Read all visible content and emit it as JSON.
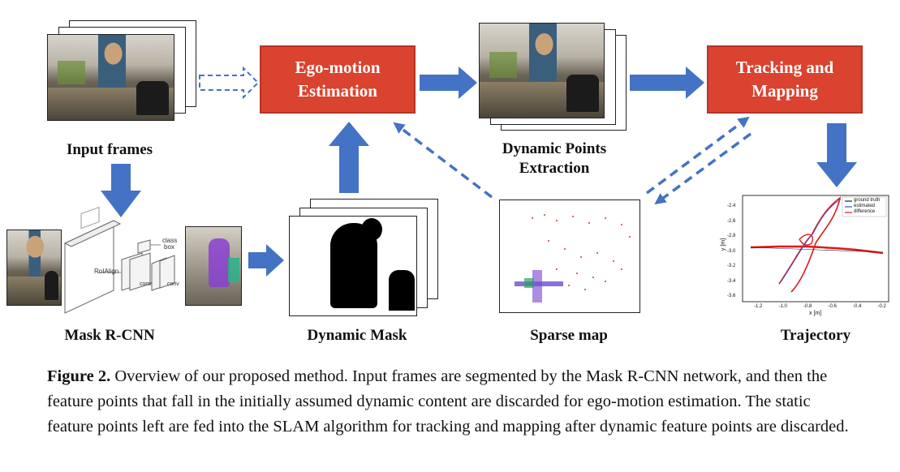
{
  "nodes": {
    "input_frames": "Input frames",
    "ego_motion": "Ego-motion\nEstimation",
    "dynamic_points": "Dynamic Points\nExtraction",
    "tracking_mapping": "Tracking and\nMapping",
    "mask_rcnn": "Mask R-CNN",
    "dynamic_mask": "Dynamic Mask",
    "sparse_map": "Sparse map",
    "trajectory": "Trajectory"
  },
  "mask_rcnn_labels": {
    "roialign": "RoIAlign",
    "class": "class",
    "box": "box",
    "conv1": "conv",
    "conv2": "conv"
  },
  "trajectory_plot": {
    "ylabel": "y [m]",
    "xlabel": "x [m]",
    "yticks": [
      "-2.4",
      "-2.6",
      "-2.8",
      "-3.0",
      "-3.2",
      "-3.4",
      "-3.6"
    ],
    "xticks": [
      "-1.2",
      "-1.0",
      "-0.8",
      "-0.6",
      "-0.4",
      "-0.2"
    ],
    "legend": [
      "ground truth",
      "estimated",
      "difference"
    ],
    "colors": {
      "ground_truth": "#222244",
      "estimated": "#3355dd",
      "difference": "#e01818"
    }
  },
  "caption": {
    "label": "Figure 2.",
    "text": " Overview of our proposed method. Input frames are segmented by the Mask R-CNN network, and then the feature points that fall in the initially assumed dynamic content are discarded for ego-motion estimation. The static feature points left are fed into the SLAM algorithm for tracking and mapping after dynamic feature points are discarded."
  },
  "colors": {
    "box_fill": "#d9432f",
    "arrow": "#4472c4"
  }
}
